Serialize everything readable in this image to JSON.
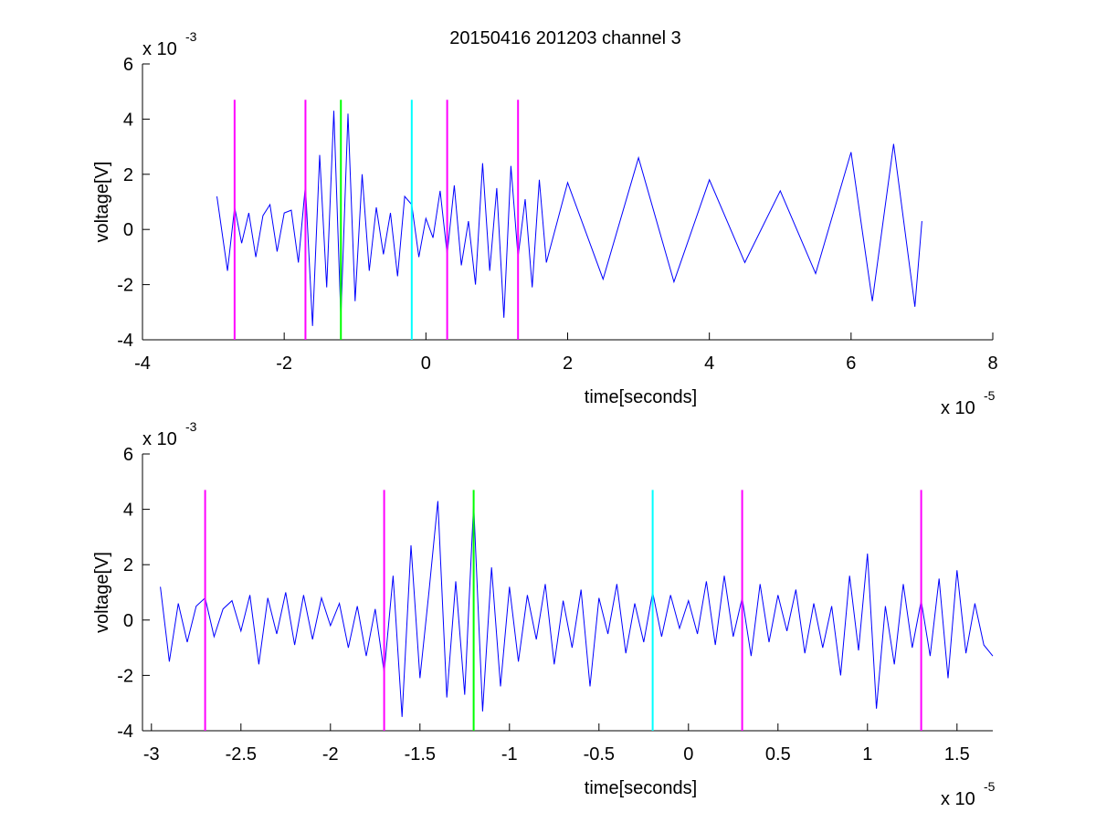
{
  "figure": {
    "title": "20150416 201203 channel 3"
  },
  "chart_data": [
    {
      "type": "line",
      "title": "20150416 201203 channel 3",
      "xlabel": "time[seconds]",
      "ylabel": "voltage[V]",
      "x_multiplier": "x 10",
      "x_exponent": "-5",
      "y_multiplier": "x 10",
      "y_exponent": "-3",
      "xlim": [
        -4,
        8
      ],
      "ylim": [
        -4,
        6
      ],
      "xticks": [
        -4,
        -2,
        0,
        2,
        4,
        6,
        8
      ],
      "xtick_labels": [
        "-4",
        "-2",
        "0",
        "2",
        "4",
        "6",
        "8"
      ],
      "yticks": [
        -4,
        -2,
        0,
        2,
        4,
        6
      ],
      "ytick_labels": [
        "-4",
        "-2",
        "0",
        "2",
        "4",
        "6"
      ],
      "grid": false,
      "series": [
        {
          "color": "#0000ff",
          "x": [
            -2.95,
            -2.8,
            -2.7,
            -2.6,
            -2.5,
            -2.4,
            -2.3,
            -2.2,
            -2.1,
            -2.0,
            -1.9,
            -1.8,
            -1.7,
            -1.6,
            -1.5,
            -1.4,
            -1.3,
            -1.2,
            -1.1,
            -1.0,
            -0.9,
            -0.8,
            -0.7,
            -0.6,
            -0.5,
            -0.4,
            -0.3,
            -0.2,
            -0.1,
            0.0,
            0.1,
            0.2,
            0.3,
            0.4,
            0.5,
            0.6,
            0.7,
            0.8,
            0.9,
            1.0,
            1.1,
            1.2,
            1.3,
            1.4,
            1.5,
            1.6,
            1.7,
            2.0,
            2.5,
            3.0,
            3.5,
            4.0,
            4.5,
            5.0,
            5.5,
            6.0,
            6.3,
            6.6,
            6.9,
            7.0
          ],
          "y": [
            1.2,
            -1.5,
            0.8,
            -0.5,
            0.6,
            -1.0,
            0.5,
            0.9,
            -0.8,
            0.6,
            0.7,
            -1.2,
            1.6,
            -3.5,
            2.7,
            -2.1,
            4.3,
            -3.2,
            4.2,
            -2.6,
            2.0,
            -1.5,
            0.8,
            -0.9,
            0.6,
            -1.7,
            1.2,
            0.9,
            -1.0,
            0.4,
            -0.3,
            1.4,
            -0.9,
            1.6,
            -1.3,
            0.3,
            -2.0,
            2.4,
            -1.5,
            1.5,
            -3.2,
            2.3,
            -1.0,
            1.1,
            -2.1,
            1.8,
            -1.2,
            1.7,
            -1.8,
            2.6,
            -1.9,
            1.8,
            -1.2,
            1.4,
            -1.6,
            2.8,
            -2.6,
            3.1,
            -2.8,
            0.3
          ]
        }
      ],
      "markers": [
        {
          "x": -2.7,
          "color": "#ff00ff"
        },
        {
          "x": -1.7,
          "color": "#ff00ff"
        },
        {
          "x": -1.2,
          "color": "#00ff00"
        },
        {
          "x": -0.2,
          "color": "#00ffff"
        },
        {
          "x": 0.3,
          "color": "#ff00ff"
        },
        {
          "x": 1.3,
          "color": "#ff00ff"
        }
      ],
      "marker_ylim": [
        -4,
        4.7
      ]
    },
    {
      "type": "line",
      "title": "",
      "xlabel": "time[seconds]",
      "ylabel": "voltage[V]",
      "x_multiplier": "x 10",
      "x_exponent": "-5",
      "y_multiplier": "x 10",
      "y_exponent": "-3",
      "xlim": [
        -3.05,
        1.7
      ],
      "ylim": [
        -4,
        6
      ],
      "xticks": [
        -3,
        -2.5,
        -2,
        -1.5,
        -1,
        -0.5,
        0,
        0.5,
        1,
        1.5
      ],
      "xtick_labels": [
        "-3",
        "-2.5",
        "-2",
        "-1.5",
        "-1",
        "-0.5",
        "0",
        "0.5",
        "1",
        "1.5"
      ],
      "yticks": [
        -4,
        -2,
        0,
        2,
        4,
        6
      ],
      "ytick_labels": [
        "-4",
        "-2",
        "0",
        "2",
        "4",
        "6"
      ],
      "grid": false,
      "series": [
        {
          "color": "#0000ff",
          "x": [
            -2.95,
            -2.9,
            -2.85,
            -2.8,
            -2.75,
            -2.7,
            -2.65,
            -2.6,
            -2.55,
            -2.5,
            -2.45,
            -2.4,
            -2.35,
            -2.3,
            -2.25,
            -2.2,
            -2.15,
            -2.1,
            -2.05,
            -2.0,
            -1.95,
            -1.9,
            -1.85,
            -1.8,
            -1.75,
            -1.7,
            -1.65,
            -1.6,
            -1.55,
            -1.5,
            -1.45,
            -1.4,
            -1.35,
            -1.3,
            -1.25,
            -1.2,
            -1.15,
            -1.1,
            -1.05,
            -1.0,
            -0.95,
            -0.9,
            -0.85,
            -0.8,
            -0.75,
            -0.7,
            -0.65,
            -0.6,
            -0.55,
            -0.5,
            -0.45,
            -0.4,
            -0.35,
            -0.3,
            -0.25,
            -0.2,
            -0.15,
            -0.1,
            -0.05,
            0.0,
            0.05,
            0.1,
            0.15,
            0.2,
            0.25,
            0.3,
            0.35,
            0.4,
            0.45,
            0.5,
            0.55,
            0.6,
            0.65,
            0.7,
            0.75,
            0.8,
            0.85,
            0.9,
            0.95,
            1.0,
            1.05,
            1.1,
            1.15,
            1.2,
            1.25,
            1.3,
            1.35,
            1.4,
            1.45,
            1.5,
            1.55,
            1.6,
            1.65,
            1.7
          ],
          "y": [
            1.2,
            -1.5,
            0.6,
            -0.8,
            0.5,
            0.8,
            -0.6,
            0.4,
            0.7,
            -0.4,
            0.9,
            -1.6,
            0.8,
            -0.5,
            1.0,
            -0.9,
            0.9,
            -0.7,
            0.8,
            -0.2,
            0.6,
            -1.0,
            0.5,
            -1.3,
            0.4,
            -1.9,
            1.6,
            -3.5,
            2.7,
            -2.1,
            1.0,
            4.3,
            -2.8,
            1.4,
            -2.7,
            4.2,
            -3.3,
            1.9,
            -2.4,
            1.2,
            -1.5,
            0.9,
            -0.7,
            1.3,
            -1.6,
            0.7,
            -1.0,
            1.1,
            -2.4,
            0.8,
            -0.5,
            1.3,
            -1.2,
            0.6,
            -0.8,
            1.0,
            -0.6,
            0.9,
            -0.3,
            0.7,
            -0.5,
            1.4,
            -0.9,
            1.6,
            -0.6,
            0.8,
            -1.3,
            1.3,
            -0.8,
            0.9,
            -0.4,
            1.1,
            -1.2,
            0.6,
            -1.0,
            0.5,
            -2.0,
            1.6,
            -1.1,
            2.4,
            -3.2,
            0.5,
            -1.6,
            1.3,
            -1.0,
            0.7,
            -1.3,
            1.5,
            -2.1,
            1.8,
            -1.2,
            0.6,
            -0.9,
            -1.3
          ]
        }
      ],
      "markers": [
        {
          "x": -2.7,
          "color": "#ff00ff"
        },
        {
          "x": -1.7,
          "color": "#ff00ff"
        },
        {
          "x": -1.2,
          "color": "#00ff00"
        },
        {
          "x": -0.2,
          "color": "#00ffff"
        },
        {
          "x": 0.3,
          "color": "#ff00ff"
        },
        {
          "x": 1.3,
          "color": "#ff00ff"
        }
      ],
      "marker_ylim": [
        -4,
        4.7
      ]
    }
  ]
}
